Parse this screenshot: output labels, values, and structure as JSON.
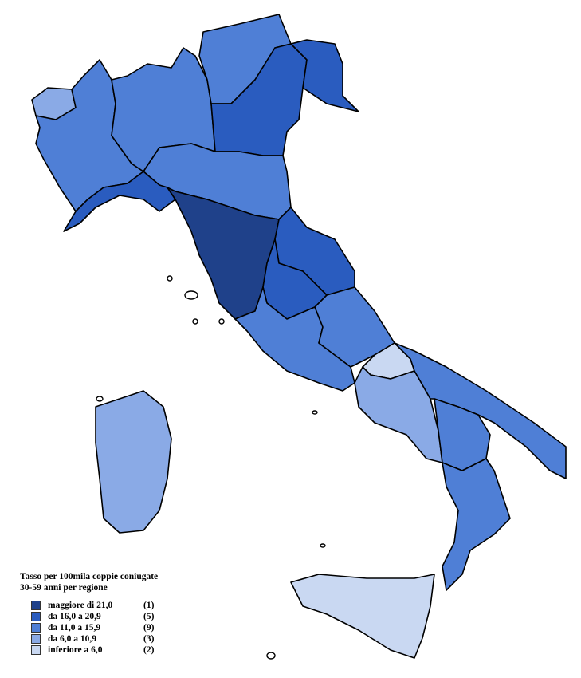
{
  "legend": {
    "title_line1": "Tasso per 100mila coppie coniugate",
    "title_line2": "30-59 anni per regione",
    "items": [
      {
        "label": "maggiore di 21,0",
        "count": "(1)",
        "color": "#1f418a"
      },
      {
        "label": "da 16,0 a 20,9",
        "count": "(5)",
        "color": "#2a5cbf"
      },
      {
        "label": "da 11,0 a 15,9",
        "count": "(9)",
        "color": "#4f7fd6"
      },
      {
        "label": "da 6,0 a 10,9",
        "count": "(3)",
        "color": "#8aaae6"
      },
      {
        "label": "inferiore a 6,0",
        "count": "(2)",
        "color": "#c9d8f2"
      }
    ]
  },
  "regions": [
    {
      "name": "Valle d'Aosta",
      "class": 3
    },
    {
      "name": "Piemonte",
      "class": 2
    },
    {
      "name": "Lombardia",
      "class": 2
    },
    {
      "name": "Trentino-Alto Adige",
      "class": 2
    },
    {
      "name": "Veneto",
      "class": 1
    },
    {
      "name": "Friuli-Venezia Giulia",
      "class": 1
    },
    {
      "name": "Emilia-Romagna",
      "class": 2
    },
    {
      "name": "Liguria",
      "class": 1
    },
    {
      "name": "Toscana",
      "class": 0
    },
    {
      "name": "Marche",
      "class": 1
    },
    {
      "name": "Umbria",
      "class": 1
    },
    {
      "name": "Lazio",
      "class": 2
    },
    {
      "name": "Abruzzo",
      "class": 2
    },
    {
      "name": "Molise",
      "class": 4
    },
    {
      "name": "Campania",
      "class": 3
    },
    {
      "name": "Puglia",
      "class": 2
    },
    {
      "name": "Basilicata",
      "class": 2
    },
    {
      "name": "Calabria",
      "class": 2
    },
    {
      "name": "Sicilia",
      "class": 4
    },
    {
      "name": "Sardegna",
      "class": 3
    }
  ]
}
